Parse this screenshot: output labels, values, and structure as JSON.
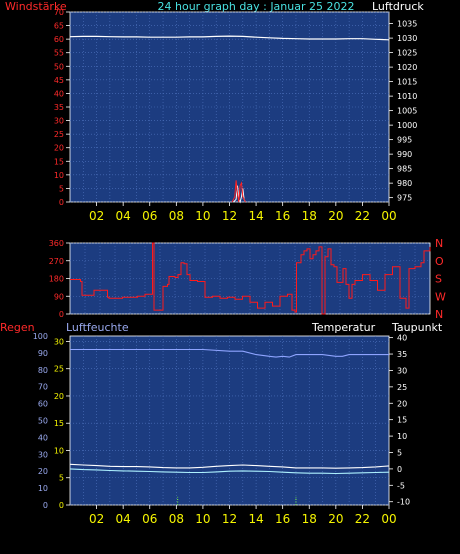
{
  "header": {
    "left_label": "Windstärke",
    "center_label": "24 hour graph day : Januar 25 2022",
    "right_label": "Luftdruck"
  },
  "bottom_labels": {
    "left": "Regen",
    "left2": "Luftfeuchte",
    "right1": "Temperatur",
    "right2": "Taupunkt"
  },
  "colors": {
    "plot_bg": "#1c3c80",
    "grid": "#4f74c0",
    "red_axis": "#ff2a2a",
    "yellow_axis": "#f5f500",
    "white_axis": "#ffffff",
    "blue_axis": "#9aaaf0",
    "cyan_header": "#49e0e0",
    "pressure_line": "#ffffff",
    "wind_line": "#ff2020",
    "gust_line": "#ffffff",
    "winddir_line": "#ff1a1a",
    "humidity_line": "#8ea4ff",
    "temp_line": "#ffffff",
    "dew_line": "#aef2ff",
    "rain_line": "#7cff3a"
  },
  "x_ticks": [
    "02",
    "04",
    "06",
    "08",
    "10",
    "12",
    "14",
    "16",
    "18",
    "20",
    "22",
    "00"
  ],
  "chart_data": [
    {
      "type": "line",
      "name": "wind-pressure",
      "x_range": [
        0,
        24
      ],
      "left_axis": {
        "label": "Windstärke",
        "ticks": [
          0,
          5,
          10,
          15,
          20,
          25,
          30,
          35,
          40,
          45,
          50,
          55,
          60,
          65,
          70
        ],
        "range": [
          0,
          70
        ]
      },
      "right_axis": {
        "label": "Luftdruck",
        "ticks": [
          975,
          980,
          985,
          990,
          995,
          1000,
          1005,
          1010,
          1015,
          1020,
          1025,
          1030,
          1035
        ],
        "range": [
          973.5,
          1039
        ]
      },
      "series": [
        {
          "name": "Luftdruck",
          "axis": "right",
          "x": [
            0,
            1,
            2,
            3,
            4,
            5,
            6,
            7,
            8,
            9,
            10,
            11,
            12,
            13,
            14,
            15,
            16,
            17,
            18,
            19,
            20,
            21,
            22,
            23,
            24
          ],
          "y": [
            1030.5,
            1030.6,
            1030.6,
            1030.5,
            1030.4,
            1030.4,
            1030.3,
            1030.3,
            1030.3,
            1030.4,
            1030.4,
            1030.6,
            1030.7,
            1030.6,
            1030.3,
            1030.1,
            1029.9,
            1029.8,
            1029.7,
            1029.7,
            1029.7,
            1029.8,
            1029.8,
            1029.6,
            1029.4
          ]
        },
        {
          "name": "Windstärke",
          "axis": "left",
          "x": [
            12.2,
            12.4,
            12.5,
            12.6,
            12.7,
            12.8,
            12.9,
            13.0,
            13.1,
            13.2
          ],
          "y": [
            0,
            2,
            8,
            3,
            0,
            6,
            7,
            2,
            1,
            0
          ]
        },
        {
          "name": "Böen",
          "axis": "left",
          "x": [
            12.3,
            12.5,
            12.6,
            12.7,
            12.8,
            12.9,
            13.0,
            13.1,
            13.2
          ],
          "y": [
            0,
            1,
            6,
            1,
            0,
            2,
            5,
            1,
            0
          ]
        }
      ]
    },
    {
      "type": "line",
      "name": "wind-direction",
      "x_range": [
        0,
        24
      ],
      "left_axis": {
        "ticks": [
          0,
          90,
          180,
          270,
          360
        ],
        "range": [
          0,
          360
        ]
      },
      "right_axis": {
        "ticks": [
          "N",
          "W",
          "S",
          "O",
          "N"
        ]
      },
      "series": [
        {
          "name": "Windrichtung",
          "x": [
            0,
            0.7,
            0.8,
            1.5,
            1.6,
            2.5,
            2.6,
            3.5,
            4.5,
            5.0,
            5.4,
            5.5,
            5.6,
            6.0,
            6.2,
            6.5,
            6.6,
            7.0,
            7.2,
            7.4,
            7.6,
            7.8,
            8.0,
            8.5,
            9.0,
            9.5,
            10.0,
            10.5,
            11.0,
            11.5,
            12.0,
            12.5,
            13.0,
            13.5,
            14.0,
            14.5,
            14.8,
            15.0,
            15.1,
            15.4,
            15.6,
            15.8,
            16.0,
            16.2,
            16.4,
            16.6,
            16.8,
            17.0,
            17.2,
            17.4,
            17.6,
            17.8,
            18.0,
            18.2,
            18.4,
            18.6,
            18.8,
            19.0,
            19.5,
            20.0,
            20.5,
            21.0,
            21.5,
            22.0,
            22.4,
            22.6,
            23.0,
            23.4,
            23.6,
            24.0
          ],
          "y": [
            175,
            165,
            95,
            95,
            120,
            85,
            80,
            85,
            90,
            100,
            100,
            360,
            20,
            20,
            140,
            150,
            190,
            185,
            200,
            260,
            255,
            200,
            170,
            165,
            85,
            90,
            80,
            85,
            75,
            90,
            60,
            30,
            60,
            40,
            90,
            100,
            20,
            10,
            260,
            300,
            320,
            330,
            280,
            300,
            320,
            340,
            0,
            290,
            330,
            250,
            240,
            160,
            160,
            230,
            150,
            80,
            150,
            170,
            200,
            170,
            120,
            200,
            240,
            80,
            30,
            230,
            240,
            260,
            320,
            340
          ]
        }
      ]
    },
    {
      "type": "line",
      "name": "temp-humidity-rain",
      "x_range": [
        0,
        24
      ],
      "left_axis": {
        "label": "Regen",
        "ticks": [
          0,
          5,
          10,
          15,
          20,
          25,
          30
        ],
        "range": [
          0,
          31
        ]
      },
      "left2_axis": {
        "label": "Luftfeuchte",
        "ticks": [
          0,
          10,
          20,
          30,
          40,
          50,
          60,
          70,
          80,
          90,
          100
        ],
        "range": [
          0,
          100
        ]
      },
      "right_axis": {
        "label": "Temperatur / Taupunkt",
        "ticks": [
          -10,
          -5,
          0,
          5,
          10,
          15,
          20,
          25,
          30,
          35,
          40
        ],
        "range": [
          -11,
          40.5
        ]
      },
      "series": [
        {
          "name": "Luftfeuchte",
          "axis": "left2",
          "x": [
            0,
            2,
            4,
            6,
            8,
            10,
            12,
            13,
            14,
            15,
            15.5,
            16,
            16.5,
            17,
            18,
            19,
            20,
            20.5,
            21,
            22,
            23,
            24
          ],
          "y": [
            92,
            92,
            92,
            92,
            92,
            92,
            91,
            91,
            89,
            88,
            87.5,
            88,
            87.5,
            89,
            89,
            89,
            88,
            88,
            89,
            89,
            89,
            89
          ]
        },
        {
          "name": "Temperatur",
          "axis": "right",
          "x": [
            0,
            1,
            2,
            3,
            4,
            5,
            6,
            7,
            8,
            9,
            10,
            11,
            12,
            13,
            14,
            15,
            16,
            17,
            18,
            19,
            20,
            21,
            22,
            23,
            24
          ],
          "y": [
            1.4,
            1.2,
            1.0,
            0.8,
            0.7,
            0.7,
            0.6,
            0.4,
            0.3,
            0.3,
            0.5,
            0.8,
            1.0,
            1.2,
            1.0,
            0.8,
            0.6,
            0.3,
            0.3,
            0.3,
            0.2,
            0.3,
            0.4,
            0.6,
            0.9
          ]
        },
        {
          "name": "Taupunkt",
          "axis": "right",
          "x": [
            0,
            1,
            2,
            3,
            4,
            5,
            6,
            7,
            8,
            9,
            10,
            11,
            12,
            13,
            14,
            15,
            16,
            17,
            18,
            19,
            20,
            21,
            22,
            23,
            24
          ],
          "y": [
            0.0,
            -0.2,
            -0.3,
            -0.5,
            -0.6,
            -0.7,
            -0.8,
            -0.9,
            -1.0,
            -1.1,
            -1.1,
            -0.9,
            -0.7,
            -0.6,
            -0.7,
            -0.8,
            -1.0,
            -1.2,
            -1.3,
            -1.3,
            -1.4,
            -1.3,
            -1.2,
            -1.1,
            -1.0
          ]
        },
        {
          "name": "Regen",
          "axis": "left",
          "type": "bar",
          "x": [
            8.1,
            17.0
          ],
          "y": [
            1.5,
            1.5
          ]
        }
      ]
    }
  ]
}
